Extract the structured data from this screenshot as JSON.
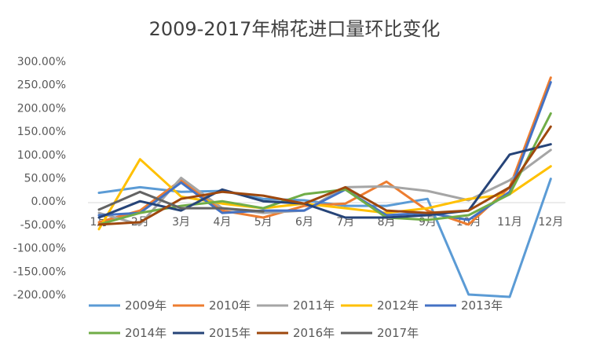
{
  "chart_data": {
    "type": "line",
    "title": "2009-2017年棉花进口量环比变化",
    "xlabel": "",
    "ylabel": "",
    "categories": [
      "1月",
      "2月",
      "3月",
      "4月",
      "5月",
      "6月",
      "7月",
      "8月",
      "9月",
      "10月",
      "11月",
      "12月"
    ],
    "y_tick_labels": [
      "300.00%",
      "250.00%",
      "200.00%",
      "150.00%",
      "100.00%",
      "50.00%",
      "0.00%",
      "-50.00%",
      "-100.00%",
      "-150.00%",
      "-200.00%"
    ],
    "ylim": [
      -200,
      300
    ],
    "y_unit": "%",
    "grid": false,
    "legend_position": "bottom",
    "series": [
      {
        "name": "2009年",
        "color": "#5B9BD5",
        "values": [
          18,
          30,
          20,
          22,
          5,
          2,
          -10,
          -10,
          5,
          -200,
          -205,
          48
        ]
      },
      {
        "name": "2010年",
        "color": "#ED7D31",
        "values": [
          -45,
          -20,
          45,
          -20,
          -35,
          -10,
          -5,
          42,
          -20,
          -50,
          30,
          265
        ]
      },
      {
        "name": "2011年",
        "color": "#A5A5A5",
        "values": [
          -25,
          -50,
          50,
          -15,
          -25,
          -20,
          30,
          32,
          22,
          2,
          45,
          110
        ]
      },
      {
        "name": "2012年",
        "color": "#FFC000",
        "values": [
          -60,
          90,
          10,
          -5,
          -15,
          -5,
          -15,
          -25,
          -15,
          5,
          15,
          75
        ]
      },
      {
        "name": "2013年",
        "color": "#4472C4",
        "values": [
          -30,
          -25,
          40,
          -25,
          -20,
          -20,
          25,
          -30,
          -25,
          -40,
          20,
          255
        ]
      },
      {
        "name": "2014年",
        "color": "#70AD47",
        "values": [
          -50,
          -25,
          -10,
          0,
          -15,
          15,
          25,
          -35,
          -40,
          -30,
          15,
          188
        ]
      },
      {
        "name": "2015年",
        "color": "#264478",
        "values": [
          -35,
          0,
          -20,
          25,
          0,
          -5,
          -35,
          -35,
          -30,
          -20,
          100,
          122
        ]
      },
      {
        "name": "2016年",
        "color": "#9E480E",
        "values": [
          -50,
          -45,
          5,
          20,
          12,
          -5,
          30,
          -20,
          -25,
          -20,
          30,
          160
        ]
      },
      {
        "name": "2017年",
        "color": "#636363",
        "values": [
          -18,
          20,
          -15,
          -15,
          -22,
          null,
          null,
          null,
          null,
          null,
          null,
          null
        ]
      }
    ]
  }
}
